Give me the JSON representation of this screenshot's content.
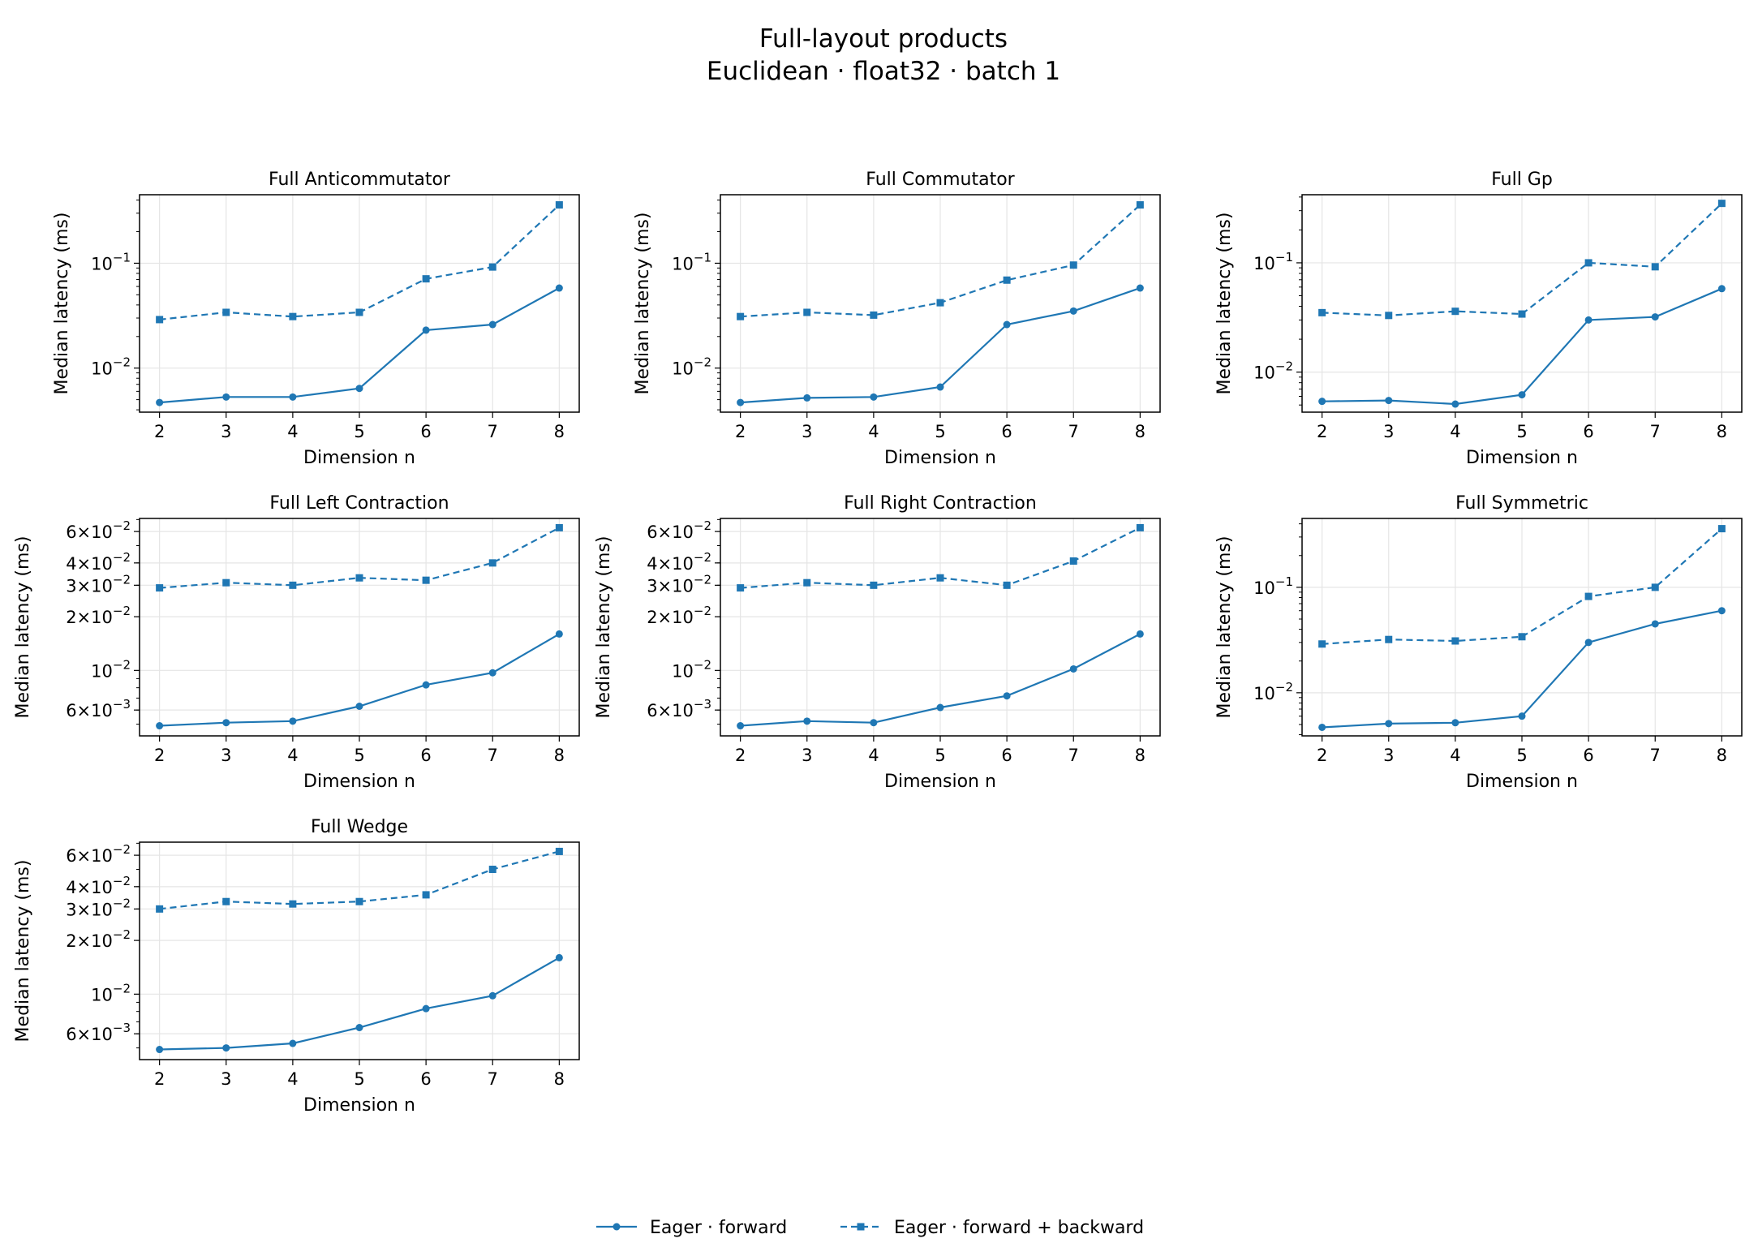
{
  "suptitle": [
    "Full-layout products",
    "Euclidean · float32 · batch 1"
  ],
  "colors": {
    "series": "#1f77b4",
    "grid": "#e5e5e5",
    "axes": "#000000"
  },
  "legend": {
    "placement": "bottom-center",
    "entries": [
      {
        "label": "Eager · forward",
        "linestyle": "solid",
        "marker": "circle"
      },
      {
        "label": "Eager · forward + backward",
        "linestyle": "dashed",
        "marker": "square"
      }
    ]
  },
  "chart_data": [
    {
      "type": "line",
      "title": "Full Anticommutator",
      "xlabel": "Dimension n",
      "ylabel": "Median latency (ms)",
      "yscale": "log",
      "ylim": [
        0.0038,
        0.45
      ],
      "grid": true,
      "x": [
        2,
        3,
        4,
        5,
        6,
        7,
        8
      ],
      "series": [
        {
          "name": "Eager · forward",
          "values": [
            0.0047,
            0.0053,
            0.0053,
            0.0064,
            0.023,
            0.026,
            0.058
          ]
        },
        {
          "name": "Eager · forward + backward",
          "values": [
            0.029,
            0.034,
            0.031,
            0.034,
            0.071,
            0.092,
            0.36
          ]
        }
      ],
      "ytick_labels": [
        {
          "value": 0.01,
          "mantissa": "",
          "exp": "−2"
        },
        {
          "value": 0.1,
          "mantissa": "",
          "exp": "−1"
        }
      ]
    },
    {
      "type": "line",
      "title": "Full Commutator",
      "xlabel": "Dimension n",
      "ylabel": "Median latency (ms)",
      "yscale": "log",
      "ylim": [
        0.0038,
        0.45
      ],
      "grid": true,
      "x": [
        2,
        3,
        4,
        5,
        6,
        7,
        8
      ],
      "series": [
        {
          "name": "Eager · forward",
          "values": [
            0.0047,
            0.0052,
            0.0053,
            0.0066,
            0.026,
            0.035,
            0.058
          ]
        },
        {
          "name": "Eager · forward + backward",
          "values": [
            0.031,
            0.034,
            0.032,
            0.042,
            0.069,
            0.096,
            0.36
          ]
        }
      ],
      "ytick_labels": [
        {
          "value": 0.01,
          "mantissa": "",
          "exp": "−2"
        },
        {
          "value": 0.1,
          "mantissa": "",
          "exp": "−1"
        }
      ]
    },
    {
      "type": "line",
      "title": "Full Gp",
      "xlabel": "Dimension n",
      "ylabel": "Median latency (ms)",
      "yscale": "log",
      "ylim": [
        0.0043,
        0.42
      ],
      "grid": true,
      "x": [
        2,
        3,
        4,
        5,
        6,
        7,
        8
      ],
      "series": [
        {
          "name": "Eager · forward",
          "values": [
            0.0054,
            0.0055,
            0.0051,
            0.0062,
            0.03,
            0.032,
            0.058
          ]
        },
        {
          "name": "Eager · forward + backward",
          "values": [
            0.035,
            0.033,
            0.036,
            0.034,
            0.1,
            0.092,
            0.35
          ]
        }
      ],
      "ytick_labels": [
        {
          "value": 0.01,
          "mantissa": "",
          "exp": "−2"
        },
        {
          "value": 0.1,
          "mantissa": "",
          "exp": "−1"
        }
      ]
    },
    {
      "type": "line",
      "title": "Full Left Contraction",
      "xlabel": "Dimension n",
      "ylabel": "Median latency (ms)",
      "yscale": "log",
      "ylim": [
        0.0043,
        0.071
      ],
      "grid": true,
      "x": [
        2,
        3,
        4,
        5,
        6,
        7,
        8
      ],
      "series": [
        {
          "name": "Eager · forward",
          "values": [
            0.0049,
            0.0051,
            0.0052,
            0.0063,
            0.0083,
            0.0097,
            0.016
          ]
        },
        {
          "name": "Eager · forward + backward",
          "values": [
            0.029,
            0.031,
            0.03,
            0.033,
            0.032,
            0.04,
            0.063
          ]
        }
      ],
      "ytick_labels": [
        {
          "value": 0.006,
          "mantissa": "6",
          "exp": "−3"
        },
        {
          "value": 0.01,
          "mantissa": "",
          "exp": "−2"
        },
        {
          "value": 0.02,
          "mantissa": "2",
          "exp": "−2"
        },
        {
          "value": 0.03,
          "mantissa": "3",
          "exp": "−2"
        },
        {
          "value": 0.04,
          "mantissa": "4",
          "exp": "−2"
        },
        {
          "value": 0.06,
          "mantissa": "6",
          "exp": "−2"
        }
      ]
    },
    {
      "type": "line",
      "title": "Full Right Contraction",
      "xlabel": "Dimension n",
      "ylabel": "Median latency (ms)",
      "yscale": "log",
      "ylim": [
        0.0043,
        0.071
      ],
      "grid": true,
      "x": [
        2,
        3,
        4,
        5,
        6,
        7,
        8
      ],
      "series": [
        {
          "name": "Eager · forward",
          "values": [
            0.0049,
            0.0052,
            0.0051,
            0.0062,
            0.0072,
            0.0102,
            0.016
          ]
        },
        {
          "name": "Eager · forward + backward",
          "values": [
            0.029,
            0.031,
            0.03,
            0.033,
            0.03,
            0.041,
            0.063
          ]
        }
      ],
      "ytick_labels": [
        {
          "value": 0.006,
          "mantissa": "6",
          "exp": "−3"
        },
        {
          "value": 0.01,
          "mantissa": "",
          "exp": "−2"
        },
        {
          "value": 0.02,
          "mantissa": "2",
          "exp": "−2"
        },
        {
          "value": 0.03,
          "mantissa": "3",
          "exp": "−2"
        },
        {
          "value": 0.04,
          "mantissa": "4",
          "exp": "−2"
        },
        {
          "value": 0.06,
          "mantissa": "6",
          "exp": "−2"
        }
      ]
    },
    {
      "type": "line",
      "title": "Full Symmetric",
      "xlabel": "Dimension n",
      "ylabel": "Median latency (ms)",
      "yscale": "log",
      "ylim": [
        0.0039,
        0.45
      ],
      "grid": true,
      "x": [
        2,
        3,
        4,
        5,
        6,
        7,
        8
      ],
      "series": [
        {
          "name": "Eager · forward",
          "values": [
            0.0047,
            0.0051,
            0.0052,
            0.006,
            0.03,
            0.045,
            0.06
          ]
        },
        {
          "name": "Eager · forward + backward",
          "values": [
            0.029,
            0.032,
            0.031,
            0.034,
            0.082,
            0.1,
            0.36
          ]
        }
      ],
      "ytick_labels": [
        {
          "value": 0.01,
          "mantissa": "",
          "exp": "−2"
        },
        {
          "value": 0.1,
          "mantissa": "",
          "exp": "−1"
        }
      ]
    },
    {
      "type": "line",
      "title": "Full Wedge",
      "xlabel": "Dimension n",
      "ylabel": "Median latency (ms)",
      "yscale": "log",
      "ylim": [
        0.0043,
        0.071
      ],
      "grid": true,
      "x": [
        2,
        3,
        4,
        5,
        6,
        7,
        8
      ],
      "series": [
        {
          "name": "Eager · forward",
          "values": [
            0.0049,
            0.005,
            0.0053,
            0.0065,
            0.0083,
            0.0098,
            0.016
          ]
        },
        {
          "name": "Eager · forward + backward",
          "values": [
            0.03,
            0.033,
            0.032,
            0.033,
            0.036,
            0.05,
            0.063
          ]
        }
      ],
      "ytick_labels": [
        {
          "value": 0.006,
          "mantissa": "6",
          "exp": "−3"
        },
        {
          "value": 0.01,
          "mantissa": "",
          "exp": "−2"
        },
        {
          "value": 0.02,
          "mantissa": "2",
          "exp": "−2"
        },
        {
          "value": 0.03,
          "mantissa": "3",
          "exp": "−2"
        },
        {
          "value": 0.04,
          "mantissa": "4",
          "exp": "−2"
        },
        {
          "value": 0.06,
          "mantissa": "6",
          "exp": "−2"
        }
      ]
    }
  ]
}
